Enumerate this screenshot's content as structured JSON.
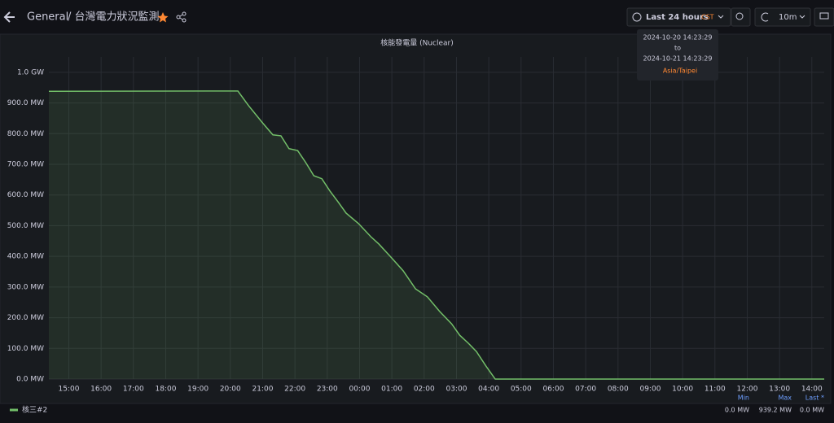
{
  "header": {
    "breadcrumb": "General",
    "dashboard": "/ 台灣電力狀況監測",
    "time_range": "Last 24 hours",
    "timezone_abbr": "CST",
    "refresh": "10m"
  },
  "time_tooltip": {
    "from": "2024-10-20 14:23:29",
    "to_word": "to",
    "to": "2024-10-21 14:23:29",
    "zone": "Asia/Taipei"
  },
  "chart_data": {
    "type": "line",
    "title": "核能發電量 (Nuclear)",
    "x": [
      "14:23",
      "20:14",
      "20:34",
      "21:00",
      "21:19",
      "21:34",
      "21:49",
      "22:05",
      "22:20",
      "22:35",
      "22:50",
      "23:05",
      "23:20",
      "23:35",
      "23:58",
      "00:21",
      "00:36",
      "00:58",
      "01:21",
      "01:44",
      "02:06",
      "02:29",
      "02:51",
      "03:06",
      "03:22",
      "03:37",
      "03:55",
      "04:12",
      "14:23"
    ],
    "series": [
      {
        "name": "核三#2",
        "color": "#73bf69",
        "values": [
          938,
          939,
          891,
          835,
          796,
          793,
          751,
          745,
          706,
          663,
          653,
          613,
          578,
          541,
          507,
          464,
          440,
          398,
          353,
          294,
          268,
          220,
          180,
          143,
          117,
          90,
          42,
          0,
          0
        ]
      }
    ],
    "ylim": [
      0,
      1050
    ],
    "yticks": [
      {
        "value": 0,
        "label": "0.0 MW"
      },
      {
        "value": 100,
        "label": "100.0 MW"
      },
      {
        "value": 200,
        "label": "200.0 MW"
      },
      {
        "value": 300,
        "label": "300.0 MW"
      },
      {
        "value": 400,
        "label": "400.0 MW"
      },
      {
        "value": 500,
        "label": "500.0 MW"
      },
      {
        "value": 600,
        "label": "600.0 MW"
      },
      {
        "value": 700,
        "label": "700.0 MW"
      },
      {
        "value": 800,
        "label": "800.0 MW"
      },
      {
        "value": 900,
        "label": "900.0 MW"
      },
      {
        "value": 1000,
        "label": "1.0 GW"
      }
    ],
    "xticks": [
      "15:00",
      "16:00",
      "17:00",
      "18:00",
      "19:00",
      "20:00",
      "21:00",
      "22:00",
      "23:00",
      "00:00",
      "01:00",
      "02:00",
      "03:00",
      "04:00",
      "05:00",
      "06:00",
      "07:00",
      "08:00",
      "09:00",
      "10:00",
      "11:00",
      "12:00",
      "13:00",
      "14:00"
    ],
    "grid": true,
    "legend_stats": [
      {
        "heading": "Min",
        "text": "0.0 MW"
      },
      {
        "heading": "Max",
        "text": "939.2 MW"
      },
      {
        "heading": "Last *",
        "text": "0.0 MW"
      }
    ]
  }
}
